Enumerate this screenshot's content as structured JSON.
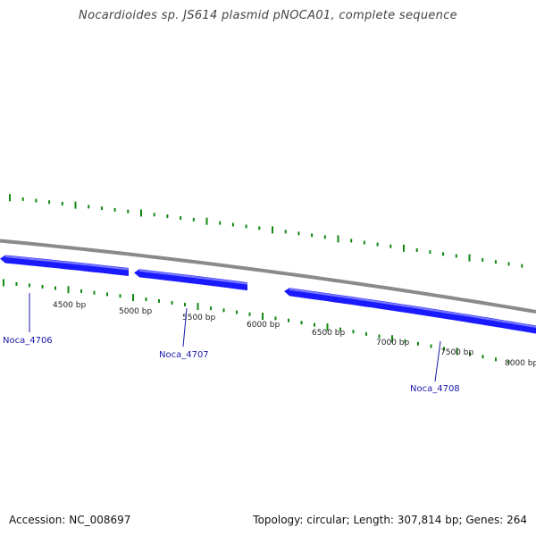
{
  "title": "Nocardioides sp. JS614 plasmid pNOCA01, complete sequence",
  "footer": {
    "accession": "Accession: NC_008697",
    "summary": "Topology: circular; Length: 307,814 bp; Genes: 264"
  },
  "colors": {
    "backbone": "#8a8a8a",
    "gene": "#1a1aff",
    "gene_highlight": "#7a7aff",
    "tick": "#118811",
    "gene_label": "#1a1aaa",
    "scale_label": "#222222"
  },
  "genes": [
    {
      "name": "Noca_4706",
      "strand": "-"
    },
    {
      "name": "Noca_4707",
      "strand": "-"
    },
    {
      "name": "Noca_4708",
      "strand": "-"
    }
  ],
  "scale_labels": [
    "4500 bp",
    "5000 bp",
    "5500 bp",
    "6000 bp",
    "6500 bp",
    "7000 bp",
    "7500 bp",
    "8000 bp"
  ]
}
